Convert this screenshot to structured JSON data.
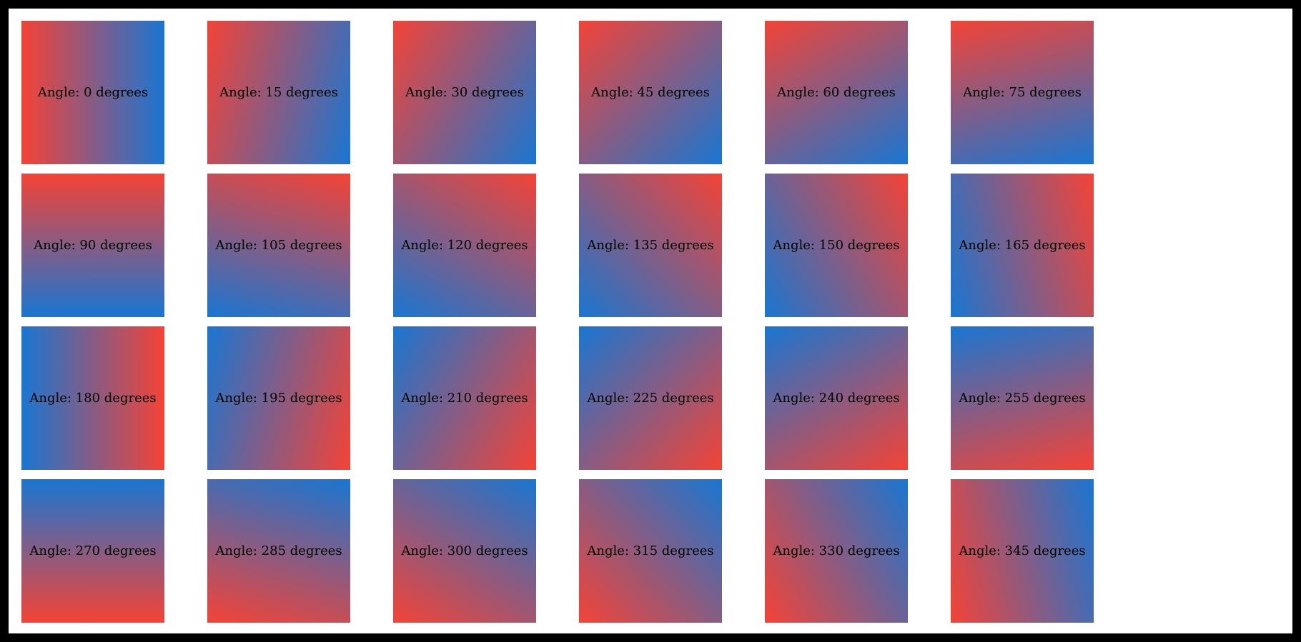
{
  "page": {
    "background": "#ffffff",
    "frame_border_color": "#000000"
  },
  "colors": {
    "gradient_start": "#f44336",
    "gradient_end": "#1976d2",
    "label_text": "#000000"
  },
  "grid": {
    "columns": 6,
    "tiles": [
      {
        "angle": 0,
        "label": "Angle: 0 degrees"
      },
      {
        "angle": 15,
        "label": "Angle: 15 degrees"
      },
      {
        "angle": 30,
        "label": "Angle: 30 degrees"
      },
      {
        "angle": 45,
        "label": "Angle: 45 degrees"
      },
      {
        "angle": 60,
        "label": "Angle: 60 degrees"
      },
      {
        "angle": 75,
        "label": "Angle: 75 degrees"
      },
      {
        "angle": 90,
        "label": "Angle: 90 degrees"
      },
      {
        "angle": 105,
        "label": "Angle: 105 degrees"
      },
      {
        "angle": 120,
        "label": "Angle: 120 degrees"
      },
      {
        "angle": 135,
        "label": "Angle: 135 degrees"
      },
      {
        "angle": 150,
        "label": "Angle: 150 degrees"
      },
      {
        "angle": 165,
        "label": "Angle: 165 degrees"
      },
      {
        "angle": 180,
        "label": "Angle: 180 degrees"
      },
      {
        "angle": 195,
        "label": "Angle: 195 degrees"
      },
      {
        "angle": 210,
        "label": "Angle: 210 degrees"
      },
      {
        "angle": 225,
        "label": "Angle: 225 degrees"
      },
      {
        "angle": 240,
        "label": "Angle: 240 degrees"
      },
      {
        "angle": 255,
        "label": "Angle: 255 degrees"
      },
      {
        "angle": 270,
        "label": "Angle: 270 degrees"
      },
      {
        "angle": 285,
        "label": "Angle: 285 degrees"
      },
      {
        "angle": 300,
        "label": "Angle: 300 degrees"
      },
      {
        "angle": 315,
        "label": "Angle: 315 degrees"
      },
      {
        "angle": 330,
        "label": "Angle: 330 degrees"
      },
      {
        "angle": 345,
        "label": "Angle: 345 degrees"
      }
    ]
  }
}
